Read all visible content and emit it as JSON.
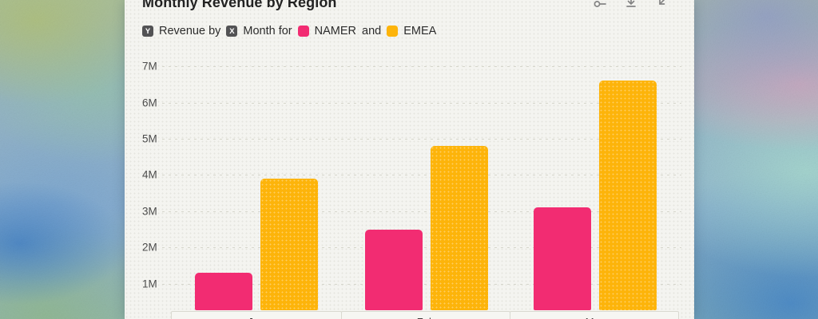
{
  "card": {
    "title": "Monthly Revenue by Region",
    "toolbar": {
      "icons": [
        "slider-icon",
        "download-icon",
        "collapse-arrow-icon"
      ]
    },
    "legend": {
      "y_badge": "Y",
      "y_text": "Revenue by",
      "x_badge": "X",
      "x_text": "Month for",
      "series_a": "NAMER",
      "joiner": "and",
      "series_b": "EMEA"
    }
  },
  "chart_data": {
    "type": "bar",
    "title": "Monthly Revenue by Region",
    "categories": [
      "Jan",
      "Feb",
      "Mar"
    ],
    "series": [
      {
        "name": "NAMER",
        "color": "#F22C72",
        "values": [
          1300000,
          2500000,
          3100000
        ]
      },
      {
        "name": "EMEA",
        "color": "#FDB40A",
        "values": [
          3900000,
          4800000,
          6600000
        ]
      }
    ],
    "y_ticks": [
      "1M",
      "2M",
      "3M",
      "4M",
      "5M",
      "6M",
      "7M"
    ],
    "ylabel": "Revenue",
    "xlabel": "Month",
    "ylim": [
      0,
      7800000
    ],
    "grid": "horizontal-dashed",
    "legend_position": "top"
  },
  "colors": {
    "namer": "#F22C72",
    "emea": "#FDB40A",
    "badge_bg": "#525254",
    "card_bg": "#F4F4F0",
    "grid": "#D6D6CC"
  }
}
